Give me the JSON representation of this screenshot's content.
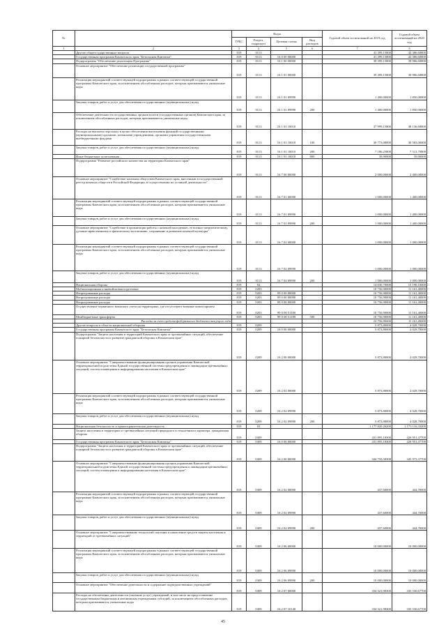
{
  "header": {
    "num": "№",
    "name": "",
    "codes": "Коды",
    "grbs": "ГРБС",
    "razdel": "Раздел, подраздел",
    "cs": "Целевая статья",
    "vr": "Вид расходов",
    "y2019": "Годовой объем ассигнований на 2019 год",
    "y2020": "Годовой объем ассигнований на 2020 год",
    "col_numbers": [
      "1",
      "2",
      "3",
      "4",
      "5",
      "6",
      "7",
      "8"
    ]
  },
  "table": {
    "rows": [
      {
        "name": "Другие общегосударственные вопросы",
        "grbs": "819",
        "razdel": "0113",
        "cs": "",
        "vr": "",
        "v2019": "41 399,15800",
        "v2020": "42 386,60800"
      },
      {
        "name": "Государственная программа Камчатского края \"Безопасная Камчатка\"",
        "grbs": "819",
        "razdel": "0113",
        "cs": "16 0 00 00000",
        "vr": "",
        "v2019": "41 399,15800",
        "v2020": "42 386,60800"
      },
      {
        "name": "Подпрограмма \"Обеспечение реализации Программы\"",
        "grbs": "819",
        "razdel": "0113",
        "cs": "16 1 00 00000",
        "vr": "",
        "v2019": "39 399,15800",
        "v2020": "39 986,60800"
      },
      {
        "name": "Основное мероприятие \"Обеспечение реализации государственной программы\"",
        "grbs": "819",
        "razdel": "0113",
        "cs": "16 1 01 00000",
        "vr": "",
        "v2019": "39 399,15800",
        "v2020": "39 986,60800"
      },
      {
        "name": "Реализация мероприятий соответствующей подпрограммы в рамках соответствующей государственной программы Камчатского края, за исключением обособленных расходов, которым присваиваются уникальные коды",
        "grbs": "819",
        "razdel": "0113",
        "cs": "16 1 01 09990",
        "vr": "",
        "v2019": "1 400,00000",
        "v2020": "1 850,00000"
      },
      {
        "name": "Закупка товаров, работ и услуг для обеспечения государственных (муниципальных) нужд",
        "grbs": "819",
        "razdel": "0113",
        "cs": "16 1 01 09990",
        "vr": "200",
        "v2019": "1 400,00000",
        "v2020": "1 850,00000"
      },
      {
        "name": "Обеспечение деятельности государственных органов власти (государственных органов) Камчатского края, за исключением обособленных расходов, которым присваиваются уникальные коды.",
        "grbs": "819",
        "razdel": "0113",
        "cs": "16 1 01 10010",
        "vr": "",
        "v2019": "37 999,15800",
        "v2020": "38 136,60800"
      },
      {
        "name": "Расходы на выплаты персоналу в целях обеспечения выполнения функций государственными (муниципальными) органами, казенными учреждениями, органами управления государственными внебюджетными фондами",
        "grbs": "819",
        "razdel": "0113",
        "cs": "16 1 01 10010",
        "vr": "100",
        "v2019": "30 773,00000",
        "v2020": "30 583,00000"
      },
      {
        "name": "Закупка товаров, работ и услуг для обеспечения государственных (муниципальных) нужд",
        "grbs": "819",
        "razdel": "0113",
        "cs": "16 1 01 10010",
        "vr": "200",
        "v2019": "7 186,25800",
        "v2020": "7 513,70800"
      },
      {
        "name": "Иные бюджетные ассигнования",
        "grbs": "819",
        "razdel": "0113",
        "cs": "16 1 01 10010",
        "vr": "800",
        "v2019": "39,90000",
        "v2020": "39,90000"
      },
      {
        "name": "Подпрограмма \"Развитие российского казачества на территории Камчатского края\"",
        "grbs": "819",
        "razdel": "0113",
        "cs": "16 7 00 00000",
        "vr": "",
        "v2019": "2 000,00000",
        "v2020": "2 400,00000"
      },
      {
        "name": "Основное мероприятие \"Содействие казачьим обществам Камчатского края, внесенным в государственный реестр казачьих обществ в Российской Федерации, в осуществлении их уставной деятельности\"",
        "grbs": "819",
        "razdel": "0113",
        "cs": "16 7 01 00000",
        "vr": "",
        "v2019": "1 000,00000",
        "v2020": "1 400,00000"
      },
      {
        "name": "Реализация мероприятий соответствующей подпрограммы в рамках соответствующей государственной программы Камчатского края, за исключением обособленных расходов, которым присваиваются уникальные коды",
        "grbs": "819",
        "razdel": "0113",
        "cs": "16 7 01 09990",
        "vr": "",
        "v2019": "1 000,00000",
        "v2020": "1 400,00000"
      },
      {
        "name": "Закупка товаров, работ и услуг для обеспечения государственных (муниципальных) нужд",
        "grbs": "819",
        "razdel": "0113",
        "cs": "16 7 01 09990",
        "vr": "200",
        "v2019": "1 000,00000",
        "v2020": "1 400,00000"
      },
      {
        "name": "Основное мероприятие \"Содействие в организации работы с казачьей молодежью, ее военно-патриотическому, духовно-нравственному и физическому воспитанию, сохранению и развитию казачьей культуры\"",
        "grbs": "819",
        "razdel": "0113",
        "cs": "16 7 02 00000",
        "vr": "",
        "v2019": "1 000,00000",
        "v2020": "1 000,00000"
      },
      {
        "name": "Реализация мероприятий соответствующей подпрограммы в рамках соответствующей государственной программы Камчатского края, за исключением обособленных расходов, которым присваиваются уникальные коды",
        "grbs": "819",
        "razdel": "0113",
        "cs": "16 7 02 09990",
        "vr": "",
        "v2019": "1 000,00000",
        "v2020": "1 000,00000"
      },
      {
        "name": "Закупка товаров, работ и услуг для обеспечения государственных (муниципальных) нужд",
        "grbs": "819",
        "razdel": "0113",
        "cs": "16 7 02 09990",
        "vr": "200",
        "v2019": "1 000,00000",
        "v2020": "1 000,00000"
      },
      {
        "name": "Национальная оборона",
        "grbs": "819",
        "razdel": "02",
        "cs": "",
        "vr": "",
        "v2019": "14 630,70000",
        "v2020": "15 190,10000"
      },
      {
        "name": "Мобилизационная и вневойсковая подготовка",
        "grbs": "819",
        "razdel": "0203",
        "cs": "",
        "vr": "",
        "v2019": "10 756,90000",
        "v2020": "11 161,40000"
      },
      {
        "name": "Непрограммные расходы",
        "grbs": "819",
        "razdel": "0203",
        "cs": "99 0 00 00000",
        "vr": "",
        "v2019": "10 756,90000",
        "v2020": "11 161,40000"
      },
      {
        "name": "Непрограммные расходы",
        "grbs": "819",
        "razdel": "0203",
        "cs": "99 0 00 00000",
        "vr": "",
        "v2019": "10 756,90000",
        "v2020": "11 161,40000"
      },
      {
        "name": "Непрограммные расходы",
        "grbs": "819",
        "razdel": "0203",
        "cs": "99 0 00 00000",
        "vr": "",
        "v2019": "10 756,90000",
        "v2020": "11 161,40000"
      },
      {
        "name": "Осуществление первичного воинского учета на территориях, где отсутствуют военные комиссариаты",
        "grbs": "819",
        "razdel": "0203",
        "cs": "99 0 00 51180",
        "vr": "",
        "v2019": "10 756,90000",
        "v2020": "11 161,40000"
      },
      {
        "name": "Межбюджетные трансферты",
        "grbs": "819",
        "razdel": "0203",
        "cs": "99 0 00 51180",
        "vr": "500",
        "v2019": "10 756,90000",
        "v2020": "11 161,40000"
      },
      {
        "name": "Расходы за счет средств федерального бюджета текущего года",
        "grbs": "",
        "razdel": "",
        "cs": "",
        "vr": "",
        "v2019": "10 756,90000",
        "v2020": "11 161,40000",
        "italic": true
      },
      {
        "name": "Другие вопросы в области национальной обороны",
        "grbs": "819",
        "razdel": "0209",
        "cs": "",
        "vr": "",
        "v2019": "3 873,80000",
        "v2020": "4 028,70000"
      },
      {
        "name": "Государственная программа Камчатского края \"Безопасная Камчатка\"",
        "grbs": "819",
        "razdel": "0209",
        "cs": "16 0 00 00000",
        "vr": "",
        "v2019": "3 873,80000",
        "v2020": "4 028,70000"
      },
      {
        "name": "Подпрограмма \"Защита населения и территорий Камчатского края от чрезвычайных ситуаций, обеспечение пожарной безопасности и развитие гражданской обороны в Камчатском крае\"",
        "grbs": "819",
        "razdel": "0209",
        "cs": "16 2 00 00000",
        "vr": "",
        "v2019": "3 873,80000",
        "v2020": "4 028,70000"
      },
      {
        "name": "Основное мероприятие \"Совершенствование функционирования органов управления Камчатской территориальной подсистемы Единой государственной системы предупреждения и ликвидации чрезвычайных ситуаций, систем оповещения и информирования населения в Камчатском крае\"",
        "grbs": "819",
        "razdel": "0209",
        "cs": "16 2 02 00000",
        "vr": "",
        "v2019": "3 873,80000",
        "v2020": "4 028,70000"
      },
      {
        "name": "Реализация мероприятий соответствующей подпрограммы в рамках соответствующей государственной программы Камчатского края, за исключением обособленных расходов, которым присваиваются уникальные коды",
        "grbs": "819",
        "razdel": "0209",
        "cs": "16 2 02 09990",
        "vr": "",
        "v2019": "3 873,80000",
        "v2020": "4 028,70000"
      },
      {
        "name": "Закупка товаров, работ и услуг для обеспечения государственных (муниципальных) нужд",
        "grbs": "819",
        "razdel": "0209",
        "cs": "16 2 02 09990",
        "vr": "200",
        "v2019": "3 873,80000",
        "v2020": "4 028,70000"
      },
      {
        "name": "Национальная безопасность и правоохранительная деятельность",
        "grbs": "819",
        "razdel": "03",
        "cs": "",
        "vr": "",
        "v2019": "1 177 820,26200",
        "v2020": "1 173 116,33200"
      },
      {
        "name": "Защита населения и территории от чрезвычайных ситуаций природного и техногенного характера, гражданская оборона",
        "grbs": "819",
        "razdel": "0309",
        "cs": "",
        "vr": "",
        "v2019": "431 895,18300",
        "v2020": "426 951,47700"
      },
      {
        "name": "Государственная программа Камчатского края \"Безопасная Камчатка\"",
        "grbs": "819",
        "razdel": "0309",
        "cs": "16 0 00 00000",
        "vr": "",
        "v2019": "431 895,18300",
        "v2020": "426 951,47700"
      },
      {
        "name": "Подпрограмма \"Защита населения и территорий Камчатского края от чрезвычайных ситуаций, обеспечение пожарной безопасности и развитие гражданской обороны в Камчатском крае\"",
        "grbs": "819",
        "razdel": "0309",
        "cs": "16 2 00 00000",
        "vr": "",
        "v2019": "344 759,58300",
        "v2020": "345 975,37700"
      },
      {
        "name": "Основное мероприятие \"Совершенствование функционирования органов управления Камчатской территориальной подсистемы Единой государственной системы предупреждения и ликвидации чрезвычайных ситуаций, систем оповещения и информирования населения в Камчатском крае\"",
        "grbs": "819",
        "razdel": "0309",
        "cs": "16 2 02 00000",
        "vr": "",
        "v2019": "437,60000",
        "v2020": "444,70000"
      },
      {
        "name": "Реализация мероприятий соответствующей подпрограммы в рамках соответствующей государственной программы Камчатского края, за исключением обособленных расходов, которым присваиваются уникальные коды",
        "grbs": "819",
        "razdel": "0309",
        "cs": "16 2 02 09990",
        "vr": "",
        "v2019": "437,60000",
        "v2020": "444,70000"
      },
      {
        "name": "Закупка товаров, работ и услуг для обеспечения государственных (муниципальных) нужд",
        "grbs": "819",
        "razdel": "0309",
        "cs": "16 2 02 09990",
        "vr": "200",
        "v2019": "437,60000",
        "v2020": "444,70000"
      },
      {
        "name": "Основное мероприятие \"Совершенствование технологий спасения и накопление средств защиты населения и территорий от чрезвычайных ситуаций\"",
        "grbs": "819",
        "razdel": "0309",
        "cs": "16 2 06 00000",
        "vr": "",
        "v2019": "10 000,00000",
        "v2020": "10 000,00000"
      },
      {
        "name": "Реализация мероприятий соответствующей подпрограммы в рамках соответствующей государственной программы Камчатского края, за исключением обособленных расходов, которым присваиваются уникальные коды",
        "grbs": "819",
        "razdel": "0309",
        "cs": "16 2 06 09990",
        "vr": "",
        "v2019": "10 000,00000",
        "v2020": "10 000,00000"
      },
      {
        "name": "Закупка товаров, работ и услуг для обеспечения государственных (муниципальных) нужд",
        "grbs": "819",
        "razdel": "0309",
        "cs": "16 2 06 09990",
        "vr": "200",
        "v2019": "10 000,00000",
        "v2020": "10 000,00000"
      },
      {
        "name": "Основное мероприятие \"Обеспечение деятельности и содержание подведомственных учреждений\"",
        "grbs": "819",
        "razdel": "0309",
        "cs": "16 2 07 00000",
        "vr": "",
        "v2019": "334 321,98300",
        "v2020": "335 530,67700"
      },
      {
        "name": "Расходы на обеспечение деятельности (оказание услуг) учреждений, в том числе на предоставление государственным бюджетным и автономным учреждениям субсидий, за исключением обособленных расходов, которым присваиваются уникальные коды",
        "grbs": "819",
        "razdel": "0309",
        "cs": "16 2 07 10140",
        "vr": "",
        "v2019": "334 321,98300",
        "v2020": "335 530,67700"
      }
    ]
  },
  "page_number": "45"
}
